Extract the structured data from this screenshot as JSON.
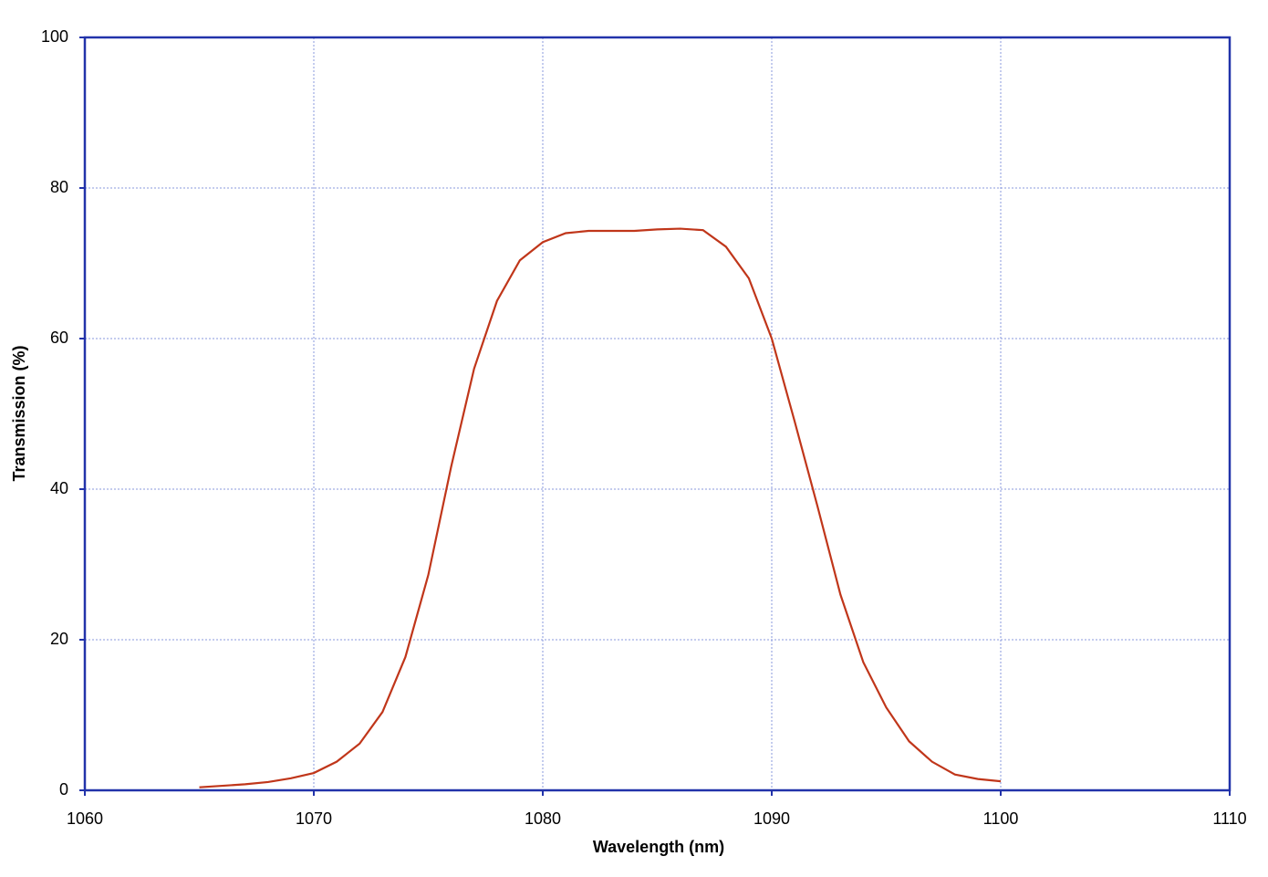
{
  "chart_data": {
    "type": "line",
    "x_label": "Wavelength (nm)",
    "y_label": "Transmission (%)",
    "xlim": [
      1060,
      1110
    ],
    "xticks": [
      1060,
      1070,
      1080,
      1090,
      1100,
      1110
    ],
    "ylim": [
      0,
      100
    ],
    "yticks": [
      0,
      20,
      40,
      60,
      80,
      100
    ],
    "grid": true,
    "x": [
      1065,
      1066,
      1067,
      1068,
      1069,
      1070,
      1071,
      1072,
      1073,
      1074,
      1075,
      1076,
      1077,
      1078,
      1079,
      1080,
      1081,
      1082,
      1083,
      1084,
      1085,
      1086,
      1087,
      1088,
      1089,
      1090,
      1091,
      1092,
      1093,
      1094,
      1095,
      1096,
      1097,
      1098,
      1099,
      1100
    ],
    "series": [
      {
        "color": "#c0361a",
        "values": [
          0.4,
          0.6,
          0.8,
          1.1,
          1.6,
          2.3,
          3.8,
          6.2,
          10.4,
          17.7,
          28.6,
          43,
          56,
          65,
          70.4,
          72.8,
          74.0,
          74.3,
          74.3,
          74.3,
          74.5,
          74.6,
          74.4,
          72.2,
          68,
          60,
          49,
          37.7,
          26,
          17,
          11,
          6.5,
          3.8,
          2.1,
          1.5,
          1.2
        ]
      }
    ]
  }
}
